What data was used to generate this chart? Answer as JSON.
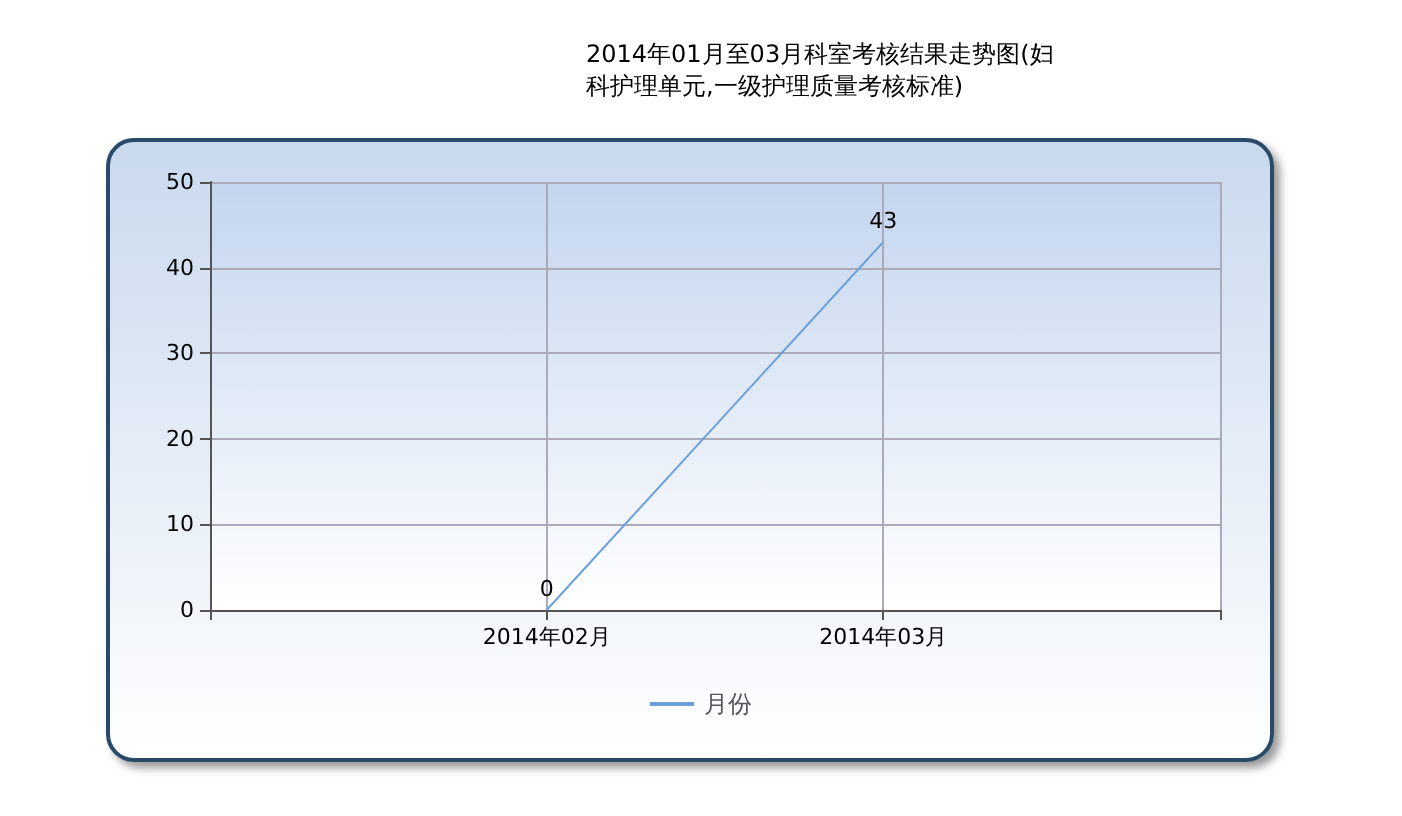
{
  "chart_data": {
    "type": "line",
    "title": "2014年01月至03月科室考核结果走势图(妇科护理单元,一级护理质量考核标准)",
    "categories": [
      null,
      "2014年02月",
      "2014年03月",
      null
    ],
    "series": [
      {
        "name": "月份",
        "color": "#6a9fd8",
        "values": [
          null,
          0,
          43,
          null
        ]
      }
    ],
    "ylim": [
      0,
      50
    ],
    "yticks": [
      0,
      10,
      20,
      30,
      40,
      50
    ],
    "grid": true,
    "legend": "bottom",
    "marker": "none",
    "line_style": "solid",
    "data_labels": true
  }
}
